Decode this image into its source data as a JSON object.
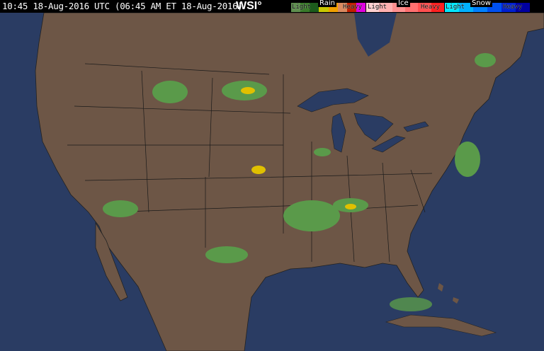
{
  "header": {
    "timestamp": "10:45 18-Aug-2016 UTC  (06:45 AM ET 18-Aug-2016)",
    "logo": "WSI°"
  },
  "legend": {
    "rain": {
      "title": "Rain",
      "light": "Light",
      "heavy": "Heavy",
      "colors": [
        "#5f8f4f",
        "#3a7a2a",
        "#1c5c1c",
        "#c8c800",
        "#f0a000",
        "#d88a60",
        "#c02000",
        "#e000e0"
      ]
    },
    "ice": {
      "title": "Ice",
      "light": "Light",
      "heavy": "Heavy",
      "colors": [
        "#ffd0d0",
        "#ffb0b0",
        "#ff9090",
        "#ff7070",
        "#ff5050",
        "#ff2020"
      ]
    },
    "snow": {
      "title": "Snow",
      "light": "Light",
      "heavy": "Heavy",
      "colors": [
        "#00e8ff",
        "#00b0ff",
        "#0080ff",
        "#0050f0",
        "#0020d0",
        "#0000a0"
      ]
    }
  },
  "map": {
    "land_color": "#6d5646",
    "water_color": "#2a3c63",
    "radar_light": "#5a9a4a",
    "radar_heavy": "#e0c000"
  }
}
